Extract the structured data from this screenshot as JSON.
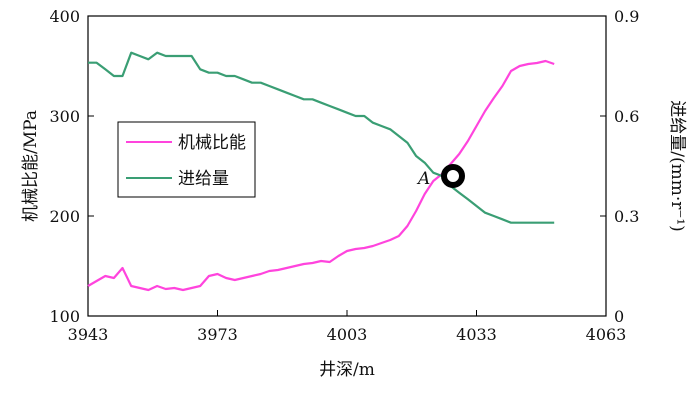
{
  "chart_data": {
    "type": "line",
    "xlabel": "井深/m",
    "ylabel_left": "机械比能/MPa",
    "ylabel_right": "进给量/(mm·r⁻¹)",
    "xlim": [
      3943,
      4063
    ],
    "ylim_left": [
      100,
      400
    ],
    "ylim_right": [
      0,
      0.9
    ],
    "xticks": [
      "3943",
      "3973",
      "4003",
      "4033",
      "4063"
    ],
    "yticks_left": [
      "100",
      "200",
      "300",
      "400"
    ],
    "yticks_right": [
      "0",
      "0.3",
      "0.6",
      "0.9"
    ],
    "legend_position": "center-left",
    "annotation": {
      "label": "A",
      "x": 4025,
      "y_left": 240
    },
    "series": [
      {
        "name": "机械比能",
        "color": "#ff44dd",
        "axis": "left",
        "x": [
          3943,
          3945,
          3947,
          3949,
          3951,
          3953,
          3955,
          3957,
          3959,
          3961,
          3963,
          3965,
          3967,
          3969,
          3971,
          3973,
          3975,
          3977,
          3979,
          3981,
          3983,
          3985,
          3987,
          3989,
          3991,
          3993,
          3995,
          3997,
          3999,
          4001,
          4003,
          4005,
          4007,
          4009,
          4011,
          4013,
          4015,
          4017,
          4019,
          4021,
          4023,
          4025,
          4027,
          4029,
          4031,
          4033,
          4035,
          4037,
          4039,
          4041,
          4043,
          4045,
          4047,
          4049,
          4051
        ],
        "y": [
          130,
          135,
          140,
          138,
          148,
          130,
          128,
          126,
          130,
          127,
          128,
          126,
          128,
          130,
          140,
          142,
          138,
          136,
          138,
          140,
          142,
          145,
          146,
          148,
          150,
          152,
          153,
          155,
          154,
          160,
          165,
          167,
          168,
          170,
          173,
          176,
          180,
          190,
          205,
          222,
          235,
          242,
          252,
          262,
          275,
          290,
          305,
          318,
          330,
          345,
          350,
          352,
          353,
          355,
          352
        ]
      },
      {
        "name": "进给量",
        "color": "#3a9e74",
        "axis": "right",
        "x": [
          3943,
          3945,
          3947,
          3949,
          3951,
          3953,
          3955,
          3957,
          3959,
          3961,
          3963,
          3965,
          3967,
          3969,
          3971,
          3973,
          3975,
          3977,
          3979,
          3981,
          3983,
          3985,
          3987,
          3989,
          3991,
          3993,
          3995,
          3997,
          3999,
          4001,
          4003,
          4005,
          4007,
          4009,
          4011,
          4013,
          4015,
          4017,
          4019,
          4021,
          4023,
          4025,
          4027,
          4029,
          4031,
          4033,
          4035,
          4037,
          4039,
          4041,
          4043,
          4045,
          4047,
          4049,
          4051
        ],
        "y": [
          0.76,
          0.76,
          0.74,
          0.72,
          0.72,
          0.79,
          0.78,
          0.77,
          0.79,
          0.78,
          0.78,
          0.78,
          0.78,
          0.74,
          0.73,
          0.73,
          0.72,
          0.72,
          0.71,
          0.7,
          0.7,
          0.69,
          0.68,
          0.67,
          0.66,
          0.65,
          0.65,
          0.64,
          0.63,
          0.62,
          0.61,
          0.6,
          0.6,
          0.58,
          0.57,
          0.56,
          0.54,
          0.52,
          0.48,
          0.46,
          0.43,
          0.42,
          0.39,
          0.37,
          0.35,
          0.33,
          0.31,
          0.3,
          0.29,
          0.28,
          0.28,
          0.28,
          0.28,
          0.28,
          0.28
        ]
      }
    ]
  }
}
